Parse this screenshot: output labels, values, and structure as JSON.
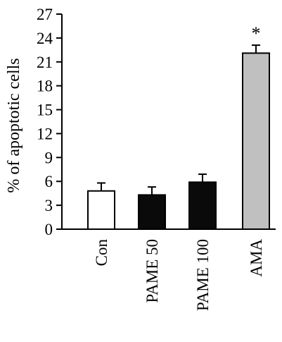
{
  "chart_data": {
    "type": "bar",
    "ylabel": "% of apoptotic cells",
    "categories": [
      "Con",
      "PAME 50",
      "PAME 100",
      "AMA"
    ],
    "values": [
      4.8,
      4.3,
      5.9,
      22.1
    ],
    "errors": [
      1.0,
      1.0,
      1.0,
      1.0
    ],
    "ylim": [
      0,
      27
    ],
    "yticks": [
      "0",
      "3",
      "6",
      "9",
      "12",
      "15",
      "18",
      "21",
      "24",
      "27"
    ],
    "bar_fills": [
      "#ffffff",
      "#0a0a0a",
      "#0a0a0a",
      "#c0c0c0"
    ],
    "annotations": [
      {
        "category": "AMA",
        "text": "*"
      }
    ],
    "grid": false
  }
}
